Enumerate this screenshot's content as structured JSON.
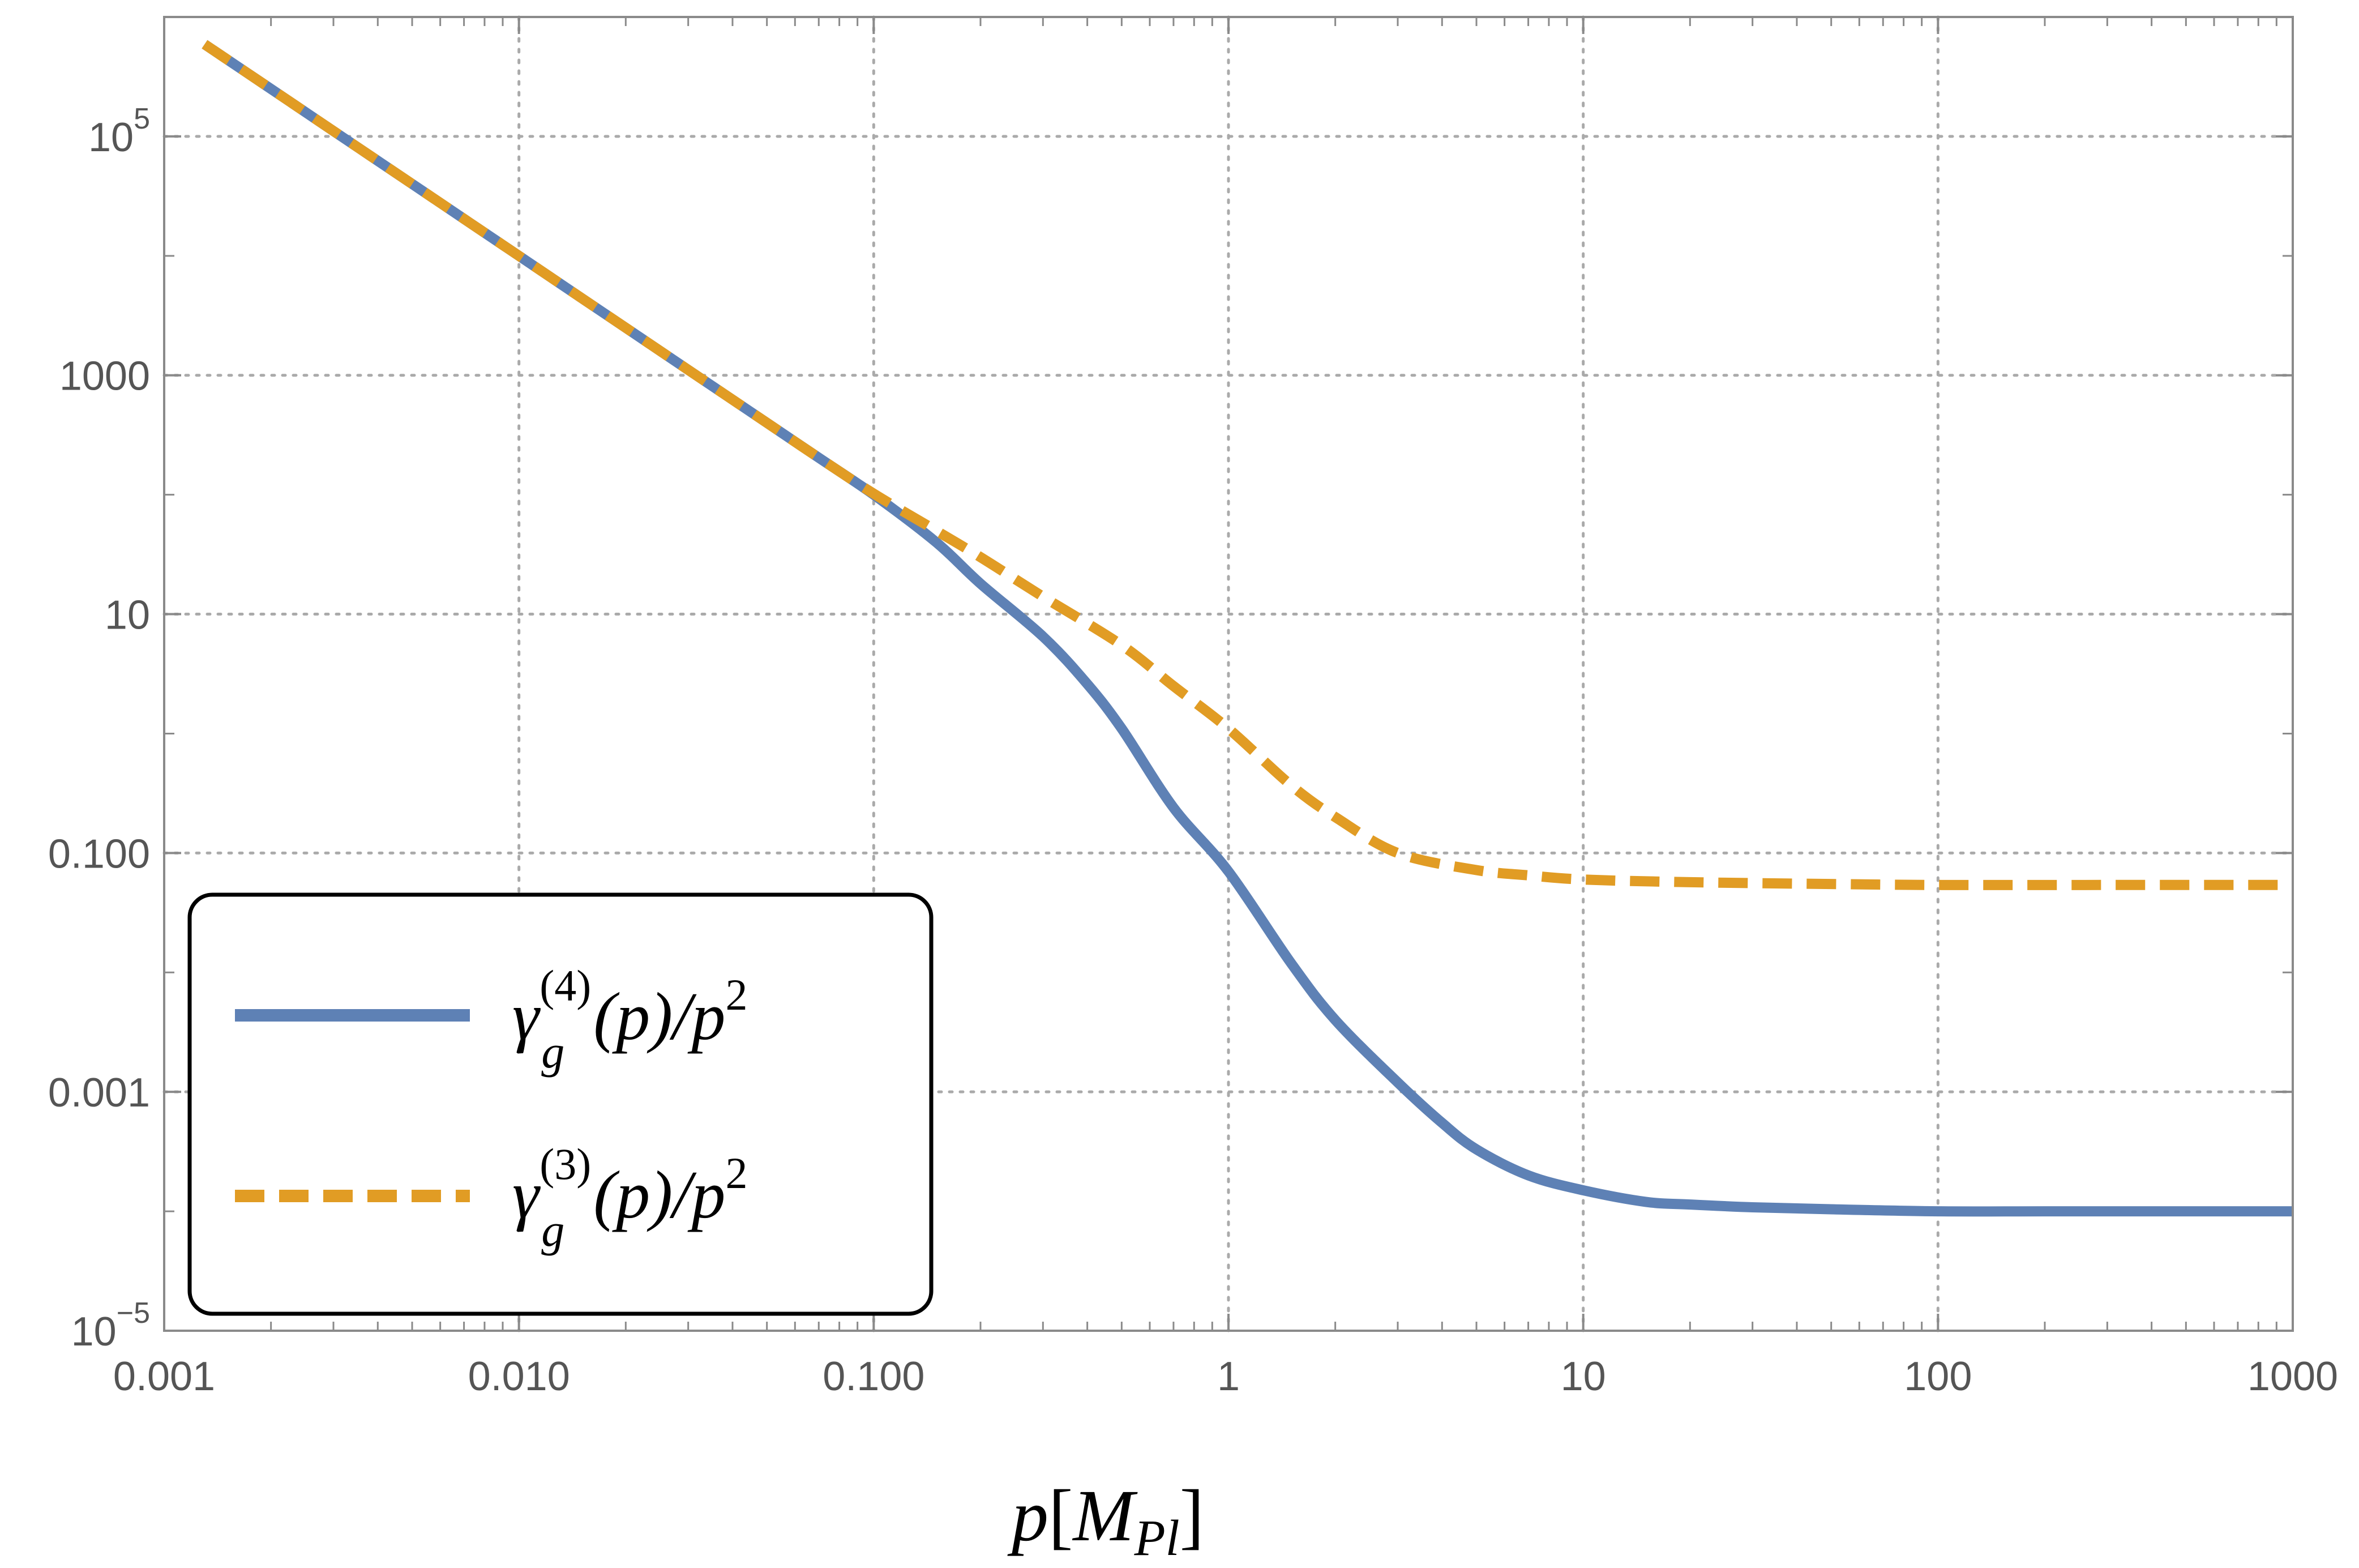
{
  "chart_data": {
    "type": "line",
    "xscale": "log",
    "yscale": "log",
    "xlim": [
      0.001,
      1000
    ],
    "ylim": [
      1e-05,
      1000000
    ],
    "grid": true,
    "xlabel": {
      "main": "p",
      "bracket_open": "[",
      "M": "M",
      "sub": "Pl",
      "bracket_close": "]"
    },
    "x_ticks": [
      {
        "value": 0.001,
        "label": "0.001"
      },
      {
        "value": 0.01,
        "label": "0.010"
      },
      {
        "value": 0.1,
        "label": "0.100"
      },
      {
        "value": 1,
        "label": "1"
      },
      {
        "value": 10,
        "label": "10"
      },
      {
        "value": 100,
        "label": "100"
      },
      {
        "value": 1000,
        "label": "1000"
      }
    ],
    "y_ticks": [
      {
        "value": 1e-05,
        "base": "10",
        "exp": "−5"
      },
      {
        "value": 0.001,
        "base": "0.001",
        "exp": ""
      },
      {
        "value": 0.1,
        "base": "0.100",
        "exp": ""
      },
      {
        "value": 10,
        "base": "10",
        "exp": ""
      },
      {
        "value": 1000,
        "base": "1000",
        "exp": ""
      },
      {
        "value": 100000,
        "base": "10",
        "exp": "5"
      }
    ],
    "legend_position": "bottom-left",
    "series": [
      {
        "label": {
          "sym": "γ",
          "sub": "g",
          "sup": "(4)",
          "arg": "(p)/p",
          "pow": "2"
        },
        "color": "#5e81b5",
        "dash": "solid",
        "x": [
          0.0013,
          0.002,
          0.003,
          0.005,
          0.007,
          0.01,
          0.015,
          0.02,
          0.03,
          0.05,
          0.07,
          0.1,
          0.15,
          0.2,
          0.3,
          0.4,
          0.5,
          0.7,
          1,
          1.5,
          2,
          3,
          4,
          5,
          7,
          10,
          15,
          20,
          30,
          50,
          100,
          200,
          500,
          1000
        ],
        "y": [
          591000,
          250000,
          111000,
          40000,
          20400,
          10000,
          4440,
          2500,
          1110,
          400,
          204,
          100,
          40,
          18,
          6.5,
          2.6,
          1.1,
          0.24,
          0.07,
          0.012,
          0.004,
          0.0012,
          0.00055,
          0.00033,
          0.0002,
          0.00015,
          0.00012,
          0.000114,
          0.000108,
          0.000104,
          0.0001,
          0.0001,
          0.0001,
          0.0001
        ]
      },
      {
        "label": {
          "sym": "γ",
          "sub": "g",
          "sup": "(3)",
          "arg": "(p)/p",
          "pow": "2"
        },
        "color": "#e19c24",
        "dash": "dashed",
        "x": [
          0.0013,
          0.002,
          0.003,
          0.005,
          0.007,
          0.01,
          0.015,
          0.02,
          0.03,
          0.05,
          0.07,
          0.1,
          0.15,
          0.2,
          0.3,
          0.5,
          0.7,
          1,
          1.5,
          2,
          3,
          5,
          7,
          10,
          20,
          50,
          100,
          300,
          1000
        ],
        "y": [
          591000,
          250000,
          111000,
          40000,
          20400,
          10000,
          4440,
          2500,
          1110,
          400,
          204,
          102,
          50,
          30,
          14,
          5.5,
          2.5,
          1.1,
          0.37,
          0.2,
          0.1,
          0.072,
          0.065,
          0.06,
          0.057,
          0.055,
          0.054,
          0.054,
          0.054
        ]
      }
    ]
  }
}
